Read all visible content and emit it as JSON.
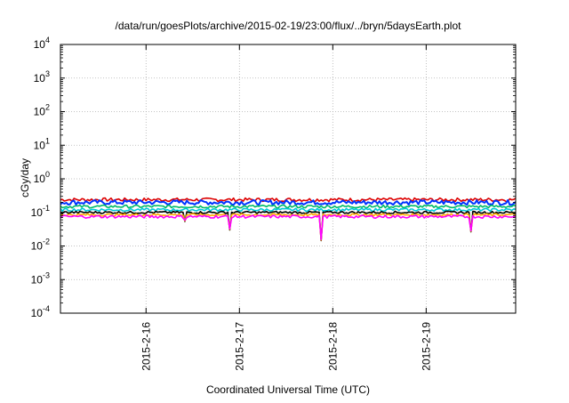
{
  "chart_data": {
    "type": "line",
    "title": "/data/run/goesPlots/archive/2015-02-19/23:00/flux/../bryn/5daysEarth.plot",
    "xlabel": "Coordinated Universal Time (UTC)",
    "ylabel": "cGy/day",
    "yscale": "log",
    "ylim": [
      0.0001,
      10000
    ],
    "xlim": [
      "2015-02-15 02:00",
      "2015-02-19 23:00"
    ],
    "grid": true,
    "legend": "none",
    "y_ticks": [
      {
        "value": 0.0001,
        "base": "10",
        "exp": "-4"
      },
      {
        "value": 0.001,
        "base": "10",
        "exp": "-3"
      },
      {
        "value": 0.01,
        "base": "10",
        "exp": "-2"
      },
      {
        "value": 0.1,
        "base": "10",
        "exp": "-1"
      },
      {
        "value": 1,
        "base": "10",
        "exp": "0"
      },
      {
        "value": 10,
        "base": "10",
        "exp": "1"
      },
      {
        "value": 100,
        "base": "10",
        "exp": "2"
      },
      {
        "value": 1000,
        "base": "10",
        "exp": "3"
      },
      {
        "value": 10000,
        "base": "10",
        "exp": "4"
      }
    ],
    "x_ticks": [
      {
        "value": "2015-02-16 00:00",
        "label": "2015-2-16"
      },
      {
        "value": "2015-02-17 00:00",
        "label": "2015-2-17"
      },
      {
        "value": "2015-02-18 00:00",
        "label": "2015-2-18"
      },
      {
        "value": "2015-02-19 00:00",
        "label": "2015-2-19"
      }
    ],
    "series": [
      {
        "color": "#dd0000",
        "baseline": 0.24,
        "jitter": 0.12
      },
      {
        "color": "#0033ff",
        "baseline": 0.2,
        "jitter": 0.16
      },
      {
        "color": "#00bb66",
        "baseline": 0.15,
        "jitter": 0.1
      },
      {
        "color": "#00c8d8",
        "baseline": 0.12,
        "jitter": 0.1
      },
      {
        "color": "#000000",
        "baseline": 0.1,
        "jitter": 0.08
      },
      {
        "color": "#ffaa00",
        "baseline": 0.085,
        "jitter": 0.08
      },
      {
        "color": "#ff00ff",
        "baseline": 0.075,
        "jitter": 0.1
      }
    ],
    "dips": [
      {
        "time": "2015-02-16 10:00",
        "value": 0.045
      },
      {
        "time": "2015-02-16 21:30",
        "value": 0.025
      },
      {
        "time": "2015-02-17 21:10",
        "value": 0.012
      },
      {
        "time": "2015-02-19 11:30",
        "value": 0.022
      }
    ]
  }
}
